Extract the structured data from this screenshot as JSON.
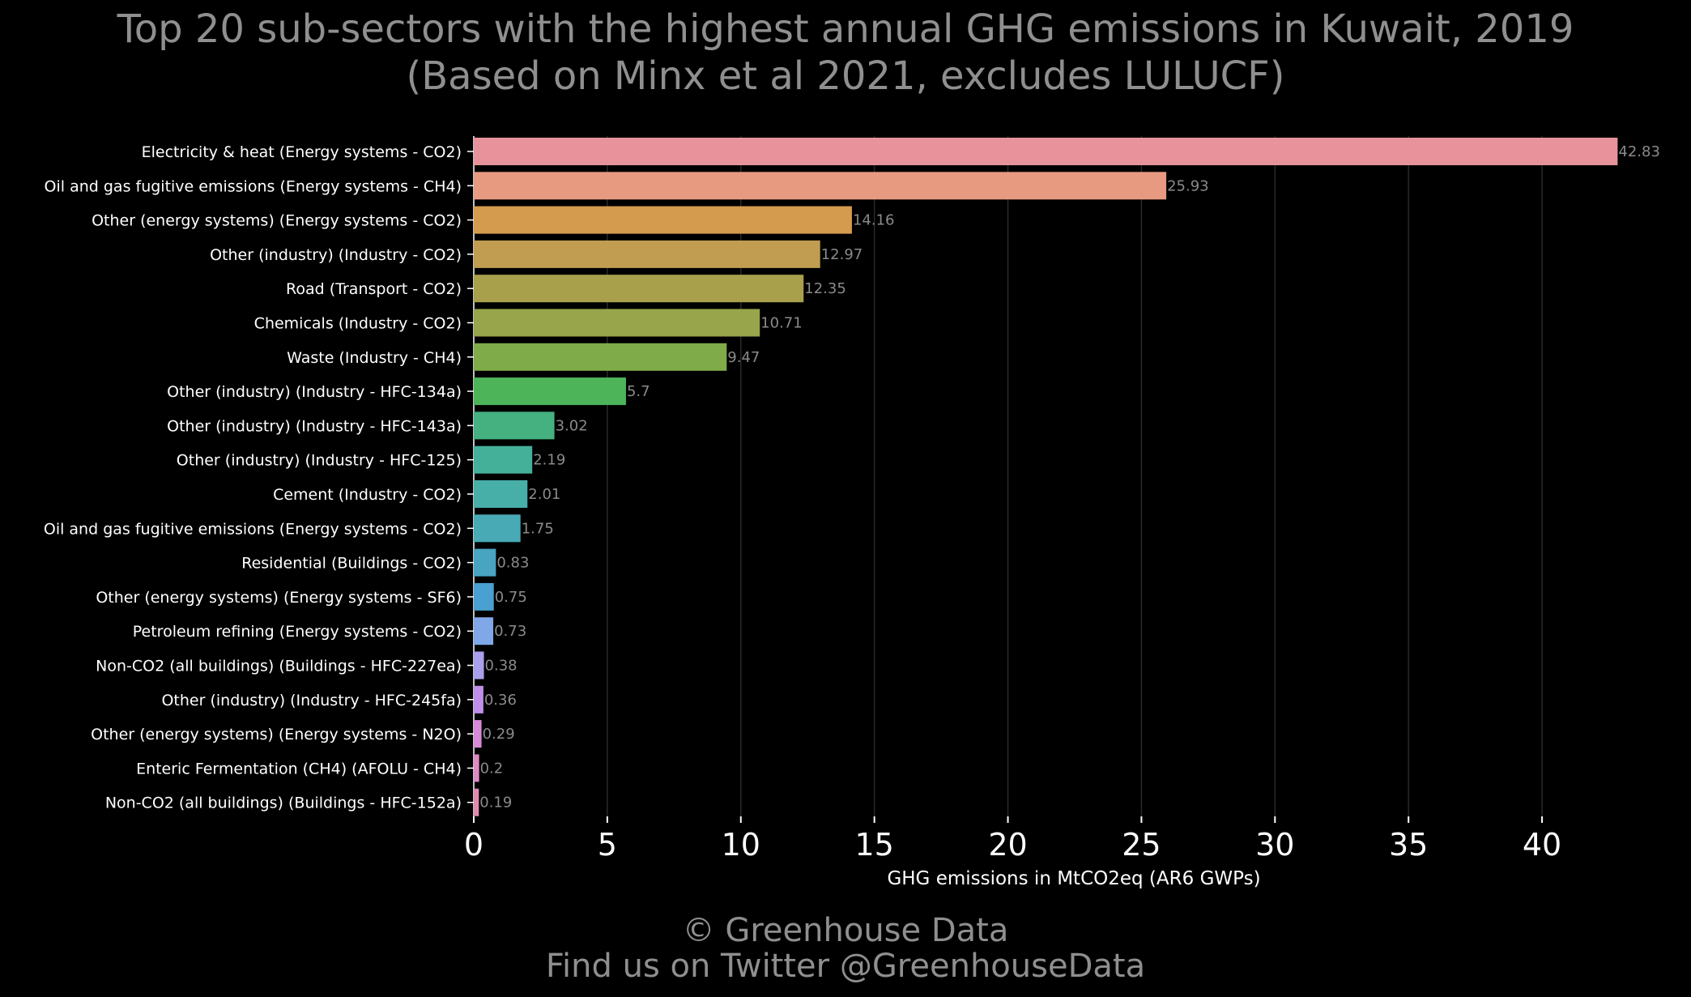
{
  "header": {
    "title": "Top 20 sub-sectors with the highest annual GHG emissions in Kuwait, 2019",
    "subtitle": "(Based on Minx et al 2021, excludes LULUCF)"
  },
  "footer": {
    "copyright": "© Greenhouse Data",
    "twitter": "Find us on Twitter @GreenhouseData"
  },
  "colors": {
    "background": "#000000",
    "title_text": "#8f8f8f",
    "axis_text": "#ffffff",
    "value_label_text": "#8a8a8a",
    "gridline": "#2a2a2a"
  },
  "chart_data": {
    "type": "bar",
    "orientation": "horizontal",
    "title": "Top 20 sub-sectors with the highest annual GHG emissions in Kuwait, 2019",
    "subtitle": "(Based on Minx et al 2021, excludes LULUCF)",
    "xlabel": "GHG emissions in MtCO2eq (AR6 GWPs)",
    "ylabel": "",
    "xlim": [
      0,
      43
    ],
    "xticks": [
      0,
      5,
      10,
      15,
      20,
      25,
      30,
      35,
      40
    ],
    "grid": "vertical",
    "categories": [
      "Electricity & heat (Energy systems - CO2)",
      "Oil and gas fugitive emissions (Energy systems - CH4)",
      "Other (energy systems) (Energy systems - CO2)",
      "Other (industry) (Industry - CO2)",
      "Road (Transport - CO2)",
      "Chemicals (Industry - CO2)",
      "Waste (Industry - CH4)",
      "Other (industry) (Industry - HFC-134a)",
      "Other (industry) (Industry - HFC-143a)",
      "Other (industry) (Industry - HFC-125)",
      "Cement (Industry - CO2)",
      "Oil and gas fugitive emissions (Energy systems - CO2)",
      "Residential (Buildings - CO2)",
      "Other (energy systems) (Energy systems - SF6)",
      "Petroleum refining (Energy systems - CO2)",
      "Non-CO2 (all buildings) (Buildings - HFC-227ea)",
      "Other (industry) (Industry - HFC-245fa)",
      "Other (energy systems) (Energy systems - N2O)",
      "Enteric Fermentation (CH4) (AFOLU - CH4)",
      "Non-CO2 (all buildings) (Buildings - HFC-152a)"
    ],
    "values": [
      42.83,
      25.93,
      14.16,
      12.97,
      12.35,
      10.71,
      9.47,
      5.7,
      3.02,
      2.19,
      2.01,
      1.75,
      0.83,
      0.75,
      0.73,
      0.38,
      0.36,
      0.29,
      0.2,
      0.19
    ],
    "value_labels": [
      "42.83",
      "25.93",
      "14.16",
      "12.97",
      "12.35",
      "10.71",
      "9.47",
      "5.7",
      "3.02",
      "2.19",
      "2.01",
      "1.75",
      "0.83",
      "0.75",
      "0.73",
      "0.38",
      "0.36",
      "0.29",
      "0.2",
      "0.19"
    ],
    "bar_colors": [
      "#e8939b",
      "#e89a80",
      "#d49a4e",
      "#c09d50",
      "#a9a04c",
      "#98a54a",
      "#7fac48",
      "#4db45a",
      "#45b080",
      "#45b09a",
      "#48aea8",
      "#48aab4",
      "#48a4c0",
      "#4aa0d0",
      "#80a8e8",
      "#a8a0ec",
      "#c090e8",
      "#d88ad8",
      "#e08ac4",
      "#e08ab0"
    ]
  }
}
